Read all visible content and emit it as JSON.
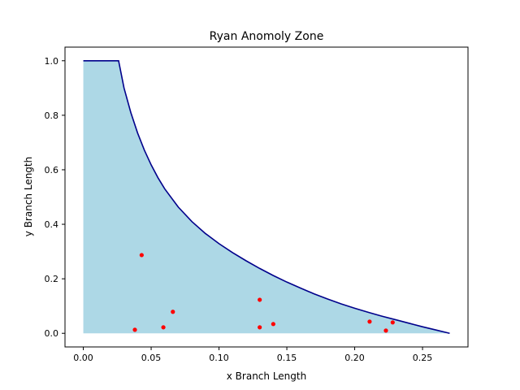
{
  "chart_data": {
    "type": "area",
    "title": "Ryan Anomoly Zone",
    "xlabel": "x Branch Length",
    "ylabel": "y Branch Length",
    "xlim": [
      -0.0135,
      0.2835
    ],
    "ylim": [
      -0.05,
      1.05
    ],
    "xticks": [
      0.0,
      0.05,
      0.1,
      0.15,
      0.2,
      0.25
    ],
    "xtick_labels": [
      "0.00",
      "0.05",
      "0.10",
      "0.15",
      "0.20",
      "0.25"
    ],
    "yticks": [
      0.0,
      0.2,
      0.4,
      0.6,
      0.8,
      1.0
    ],
    "ytick_labels": [
      "0.0",
      "0.2",
      "0.4",
      "0.6",
      "0.8",
      "1.0"
    ],
    "grid": false,
    "boundary_series": {
      "x": [
        0.0,
        0.01,
        0.02,
        0.026,
        0.03,
        0.035,
        0.04,
        0.045,
        0.05,
        0.055,
        0.06,
        0.07,
        0.08,
        0.09,
        0.1,
        0.11,
        0.12,
        0.13,
        0.14,
        0.15,
        0.16,
        0.17,
        0.18,
        0.19,
        0.2,
        0.21,
        0.22,
        0.23,
        0.24,
        0.25,
        0.26,
        0.27
      ],
      "y": [
        1.0,
        1.0,
        1.0,
        1.0,
        0.9,
        0.81,
        0.735,
        0.672,
        0.618,
        0.571,
        0.53,
        0.463,
        0.41,
        0.366,
        0.329,
        0.296,
        0.266,
        0.238,
        0.212,
        0.188,
        0.166,
        0.145,
        0.126,
        0.108,
        0.092,
        0.077,
        0.063,
        0.05,
        0.037,
        0.024,
        0.012,
        0.0
      ]
    },
    "points": {
      "x": [
        0.038,
        0.043,
        0.059,
        0.066,
        0.13,
        0.13,
        0.14,
        0.211,
        0.223,
        0.228
      ],
      "y": [
        0.013,
        0.287,
        0.022,
        0.079,
        0.022,
        0.123,
        0.034,
        0.043,
        0.01,
        0.04
      ]
    },
    "colors": {
      "fill": "#add8e6",
      "line": "#00008b",
      "points": "#ff0000"
    }
  }
}
